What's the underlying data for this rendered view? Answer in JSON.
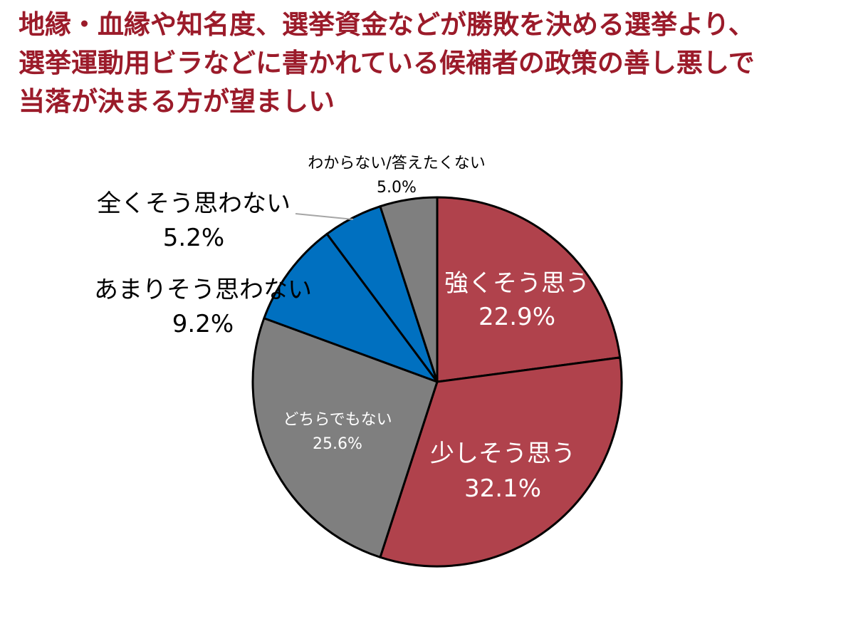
{
  "title_lines": [
    "地縁・血縁や知名度、選挙資金などが勝敗を決める選挙より、",
    "選挙運動用ビラなどに書かれている候補者の政策の善し悪しで",
    "当落が決まる方が望ましい"
  ],
  "chart_data": {
    "type": "pie",
    "title": "地縁・血縁や知名度、選挙資金などが勝敗を決める選挙より、選挙運動用ビラなどに書かれている候補者の政策の善し悪しで当落が決まる方が望ましい",
    "start_angle_deg": 0,
    "direction": "clockwise",
    "legend": "none",
    "slices": [
      {
        "label": "強くそう思う",
        "value": 22.9,
        "display": "22.9%",
        "color": "#b0424c"
      },
      {
        "label": "少しそう思う",
        "value": 32.1,
        "display": "32.1%",
        "color": "#b0424c"
      },
      {
        "label": "どちらでもない",
        "value": 25.6,
        "display": "25.6%",
        "color": "#7f7f7f"
      },
      {
        "label": "あまりそう思わない",
        "value": 9.2,
        "display": "9.2%",
        "color": "#0070c0"
      },
      {
        "label": "全くそう思わない",
        "value": 5.2,
        "display": "5.2%",
        "color": "#0070c0"
      },
      {
        "label": "わからない/答えたくない",
        "value": 5.0,
        "display": "5.0%",
        "color": "#7f7f7f"
      }
    ]
  }
}
